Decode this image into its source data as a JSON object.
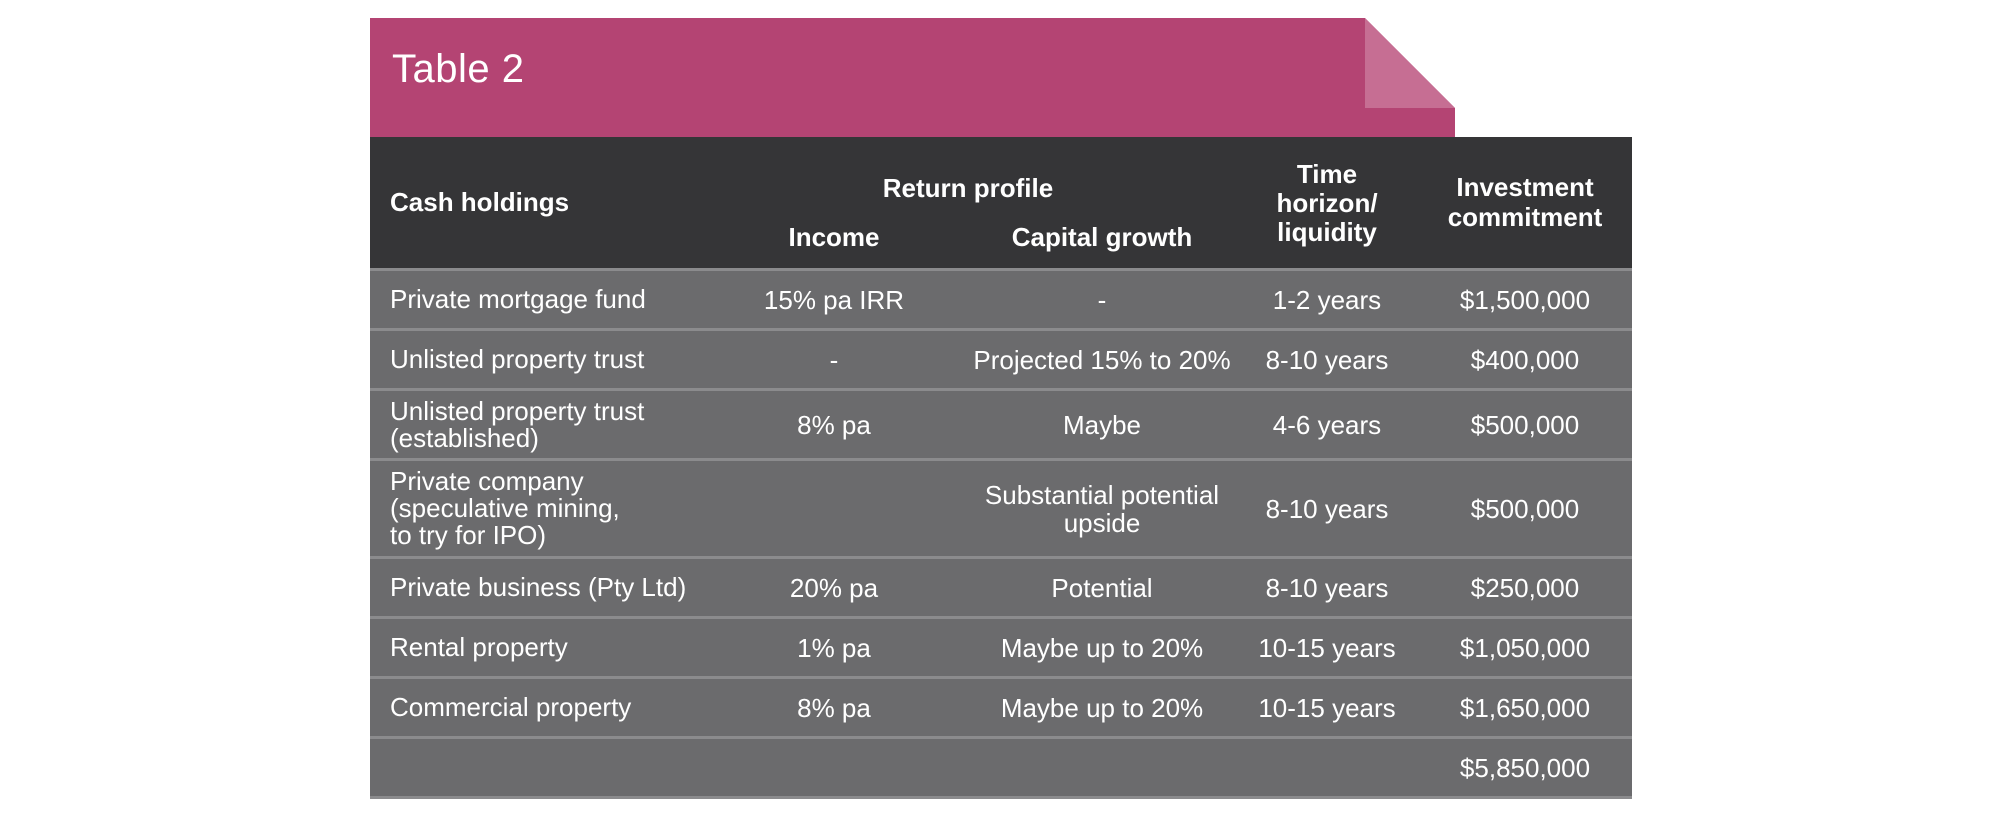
{
  "title": "Table 2",
  "colors": {
    "tab": "#b44473",
    "fold": "#c66e93",
    "header": "#353537",
    "row": "#6b6b6d",
    "divider": "#8b8b8d"
  },
  "headers": {
    "col0": "Cash holdings",
    "return_profile": "Return profile",
    "income": "Income",
    "capital_growth": "Capital growth",
    "time_horizon": [
      "Time",
      "horizon/",
      "liquidity"
    ],
    "commitment": [
      "Investment",
      "commitment"
    ]
  },
  "rows": [
    {
      "name": [
        "Private mortgage fund"
      ],
      "income": "15% pa IRR",
      "growth": [
        "-"
      ],
      "time": "1-2 years",
      "commitment": "$1,500,000"
    },
    {
      "name": [
        "Unlisted property trust"
      ],
      "income": "-",
      "growth": [
        "Projected 15% to 20%"
      ],
      "time": "8-10 years",
      "commitment": "$400,000"
    },
    {
      "name": [
        "Unlisted property trust",
        "(established)"
      ],
      "income": "8% pa",
      "growth": [
        "Maybe"
      ],
      "time": "4-6 years",
      "commitment": "$500,000"
    },
    {
      "name": [
        "Private company",
        "(speculative mining,",
        "to try for IPO)"
      ],
      "income": "",
      "growth": [
        "Substantial potential",
        "upside"
      ],
      "time": "8-10 years",
      "commitment": "$500,000"
    },
    {
      "name": [
        "Private business (Pty Ltd)"
      ],
      "income": "20% pa",
      "growth": [
        "Potential"
      ],
      "time": "8-10 years",
      "commitment": "$250,000"
    },
    {
      "name": [
        "Rental property"
      ],
      "income": "1% pa",
      "growth": [
        "Maybe up to 20%"
      ],
      "time": "10-15 years",
      "commitment": "$1,050,000"
    },
    {
      "name": [
        "Commercial property"
      ],
      "income": "8% pa",
      "growth": [
        "Maybe up to 20%"
      ],
      "time": "10-15 years",
      "commitment": "$1,650,000"
    }
  ],
  "total": {
    "commitment": "$5,850,000"
  }
}
